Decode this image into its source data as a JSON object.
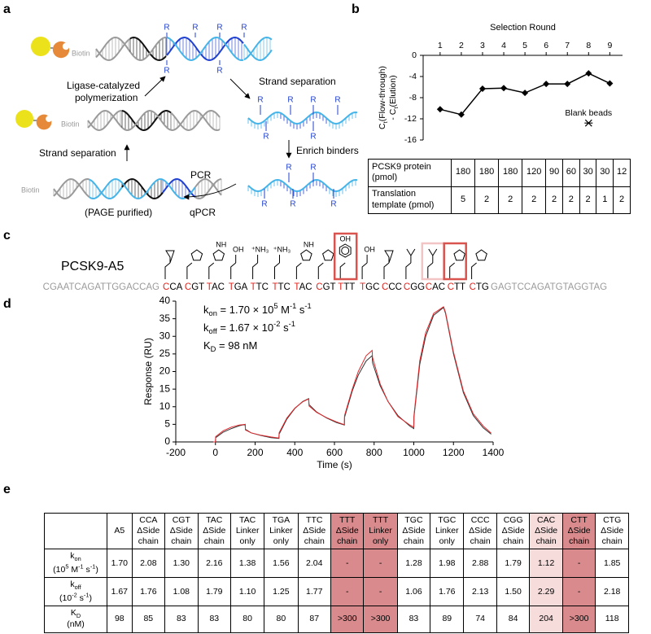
{
  "panel_labels": [
    "a",
    "b",
    "c",
    "d",
    "e"
  ],
  "panel_a": {
    "biotin": "Biotin",
    "r": "R",
    "ligase": [
      "Ligase-catalyzed",
      "polymerization"
    ],
    "strand_separation_1": "Strand separation",
    "enrich": "Enrich binders",
    "strand_separation_2": "Strand separation",
    "pcr": "PCR",
    "qpcr": "qPCR",
    "page": "(PAGE purified)"
  },
  "chart_data": [
    {
      "type": "line",
      "x_label": "Selection Round",
      "y_label": [
        [
          {
            "t": "C"
          },
          {
            "sub": "t"
          },
          {
            "t": "(Flow-through)"
          }
        ],
        [
          {
            "t": "- C"
          },
          {
            "sub": "t"
          },
          {
            "t": "(Elution)"
          }
        ]
      ],
      "x": [
        1,
        2,
        3,
        4,
        5,
        6,
        7,
        8,
        9
      ],
      "series": [
        {
          "color": "#000000",
          "marker": "diamond",
          "values": [
            -10.2,
            -11.2,
            -6.3,
            -6.2,
            -7.1,
            -5.4,
            -5.4,
            -3.4,
            -5.3
          ]
        },
        {
          "color": "#000000",
          "marker": "asterisk",
          "x": [
            8
          ],
          "values": [
            -12.8
          ],
          "annotation": "Blank beads"
        }
      ],
      "xlim": [
        0.2,
        9.6
      ],
      "xticks": [
        1,
        2,
        3,
        4,
        5,
        6,
        7,
        8,
        9
      ],
      "ylim": [
        -16,
        0
      ],
      "yticks": [
        0,
        -4,
        -8,
        -12,
        -16
      ],
      "x_axis_position": "top"
    },
    {
      "type": "line",
      "x_label": "Time (s)",
      "y_label": "Response (RU)",
      "x": [
        -10,
        0,
        1,
        40,
        80,
        120,
        150,
        151,
        180,
        230,
        280,
        320,
        321,
        360,
        400,
        440,
        470,
        472,
        510,
        560,
        610,
        650,
        651,
        690,
        720,
        760,
        790,
        792,
        830,
        870,
        920,
        980,
        1000,
        1001,
        1030,
        1060,
        1100,
        1150,
        1160,
        1200,
        1250,
        1300,
        1350,
        1390
      ],
      "series": [
        {
          "color": "#333333",
          "values": [
            0,
            0,
            1.2,
            2.8,
            3.8,
            4.6,
            5,
            3.6,
            2.6,
            1.8,
            1.2,
            1,
            2.2,
            6.5,
            9.5,
            11.5,
            12.3,
            10.6,
            8.5,
            6.8,
            5.5,
            4.8,
            7,
            14.5,
            19,
            23,
            24.5,
            22.5,
            16,
            11.5,
            7.5,
            4.5,
            3.8,
            7,
            22,
            30,
            36,
            38.2,
            36.5,
            25,
            14,
            7.5,
            4,
            2.2
          ]
        },
        {
          "color": "#e0282c",
          "values": [
            0,
            0,
            1.5,
            3.2,
            4.2,
            4.8,
            5,
            3.4,
            2.6,
            1.9,
            1.4,
            1.1,
            2.6,
            6.8,
            9.6,
            11.4,
            12.2,
            10.2,
            8.4,
            6.9,
            5.7,
            4.9,
            7.5,
            15,
            20,
            24.5,
            26,
            24,
            16.5,
            11.5,
            7.2,
            4.8,
            4.2,
            7.5,
            23,
            31,
            36.5,
            38.4,
            36.8,
            25.5,
            14.5,
            8,
            4.5,
            2.5
          ]
        }
      ],
      "xlim": [
        -200,
        1400
      ],
      "xticks": [
        -200,
        0,
        200,
        400,
        600,
        800,
        1000,
        1200,
        1400
      ],
      "ylim": [
        0,
        40
      ],
      "yticks": [
        0,
        5,
        10,
        15,
        20,
        25,
        30,
        35,
        40
      ],
      "annotations": [
        [
          {
            "t": "k"
          },
          {
            "sub": "on"
          },
          {
            "t": " = 1.70 × 10"
          },
          {
            "sup": "5"
          },
          {
            "t": " M"
          },
          {
            "sup": "-1"
          },
          {
            "t": " s"
          },
          {
            "sup": "-1"
          }
        ],
        [
          {
            "t": "k"
          },
          {
            "sub": "off"
          },
          {
            "t": " = 1.67 × 10"
          },
          {
            "sup": "-2"
          },
          {
            "t": " s"
          },
          {
            "sup": "-1"
          }
        ],
        [
          {
            "t": "K"
          },
          {
            "sub": "D"
          },
          {
            "t": " = 98 nM"
          }
        ]
      ]
    }
  ],
  "table_b": {
    "rows": [
      {
        "label": [
          "PCSK9 protein",
          "(pmol)"
        ],
        "cells": [
          "180",
          "180",
          "180",
          "120",
          "90",
          "60",
          "30",
          "30",
          "12"
        ]
      },
      {
        "label": [
          "Translation",
          "template (pmol)"
        ],
        "cells": [
          "5",
          "2",
          "2",
          "2",
          "2",
          "2",
          "2",
          "1",
          "2"
        ]
      }
    ]
  },
  "panel_c": {
    "name": "PCSK9-A5",
    "left_flank": "CGAATCAGATTGGACCAG",
    "right_flank": "GAGTCCAGATGTAGGTAG",
    "codons": [
      "CCA",
      "CGT",
      "TAC",
      "TGA",
      "TTC",
      "TTC",
      "TAC",
      "CGT",
      "TTT",
      "TGC",
      "CCC",
      "CGG",
      "CAC",
      "CTT",
      "CTG"
    ],
    "side_chain_labels": [
      null,
      null,
      "NH",
      "OH",
      "⁺NH₃",
      "⁺NH₃",
      "NH",
      null,
      "OH",
      "OH",
      null,
      null,
      null,
      null,
      null
    ],
    "box_colors": [
      null,
      null,
      null,
      null,
      null,
      null,
      null,
      null,
      "#d9534f",
      null,
      null,
      null,
      "#f2c4c4",
      "#d9534f",
      null
    ]
  },
  "table_e": {
    "header": [
      [
        "A5"
      ],
      [
        "CCA",
        "ΔSide",
        "chain"
      ],
      [
        "CGT",
        "ΔSide",
        "chain"
      ],
      [
        "TAC",
        "ΔSide",
        "chain"
      ],
      [
        "TAC",
        "Linker",
        "only"
      ],
      [
        "TGA",
        "Linker",
        "only"
      ],
      [
        "TTC",
        "ΔSide",
        "chain"
      ],
      [
        "TTT",
        "ΔSide",
        "chain"
      ],
      [
        "TTT",
        "Linker",
        "only"
      ],
      [
        "TGC",
        "ΔSide",
        "chain"
      ],
      [
        "TGC",
        "Linker",
        "only"
      ],
      [
        "CCC",
        "ΔSide",
        "chain"
      ],
      [
        "CGG",
        "ΔSide",
        "chain"
      ],
      [
        "CAC",
        "ΔSide",
        "chain"
      ],
      [
        "CTT",
        "ΔSide",
        "chain"
      ],
      [
        "CTG",
        "ΔSide",
        "chain"
      ]
    ],
    "column_fill": [
      null,
      null,
      null,
      null,
      null,
      null,
      null,
      "#d98a8c",
      "#d98a8c",
      null,
      null,
      null,
      null,
      "#f7dcdc",
      "#d98a8c",
      null
    ],
    "rows": [
      {
        "label": [
          [
            {
              "t": "k"
            },
            {
              "sub": "on"
            }
          ],
          [
            {
              "t": "(10"
            },
            {
              "sup": "5"
            },
            {
              "t": " M"
            },
            {
              "sup": "-1"
            },
            {
              "t": " s"
            },
            {
              "sup": "-1"
            },
            {
              "t": ")"
            }
          ]
        ],
        "cells": [
          "1.70",
          "2.08",
          "1.30",
          "2.16",
          "1.38",
          "1.56",
          "2.04",
          "-",
          "-",
          "1.28",
          "1.98",
          "2.88",
          "1.79",
          "1.12",
          "-",
          "1.85"
        ]
      },
      {
        "label": [
          [
            {
              "t": "k"
            },
            {
              "sub": "off"
            }
          ],
          [
            {
              "t": "(10"
            },
            {
              "sup": "-2"
            },
            {
              "t": " s"
            },
            {
              "sup": "-1"
            },
            {
              "t": ")"
            }
          ]
        ],
        "cells": [
          "1.67",
          "1.76",
          "1.08",
          "1.79",
          "1.10",
          "1.25",
          "1.77",
          "-",
          "-",
          "1.06",
          "1.76",
          "2.13",
          "1.50",
          "2.29",
          "-",
          "2.18"
        ]
      },
      {
        "label": [
          [
            {
              "t": "K"
            },
            {
              "sub": "D"
            }
          ],
          [
            {
              "t": "(nM)"
            }
          ]
        ],
        "cells": [
          "98",
          "85",
          "83",
          "83",
          "80",
          "80",
          "87",
          ">300",
          ">300",
          "83",
          "89",
          "74",
          "84",
          "204",
          ">300",
          "118"
        ]
      }
    ]
  }
}
